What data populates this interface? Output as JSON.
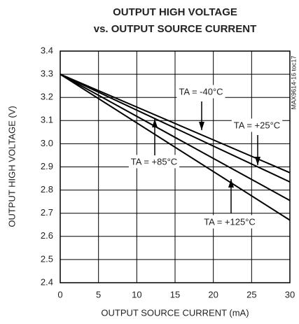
{
  "chart_data": {
    "type": "line",
    "title": [
      "OUTPUT HIGH VOLTAGE",
      "vs. OUTPUT SOURCE CURRENT"
    ],
    "x_label": "OUTPUT SOURCE CURRENT (mA)",
    "y_label": "OUTPUT HIGH VOLTAGE (V)",
    "annotation": "MAX9614-16 toc17",
    "x": [
      0,
      30
    ],
    "series": [
      {
        "name": "TA = -40°C",
        "color": "#000000",
        "values": [
          3.3,
          2.875
        ]
      },
      {
        "name": "TA = +25°C",
        "color": "#000000",
        "values": [
          3.3,
          2.835
        ]
      },
      {
        "name": "TA = +85°C",
        "color": "#000000",
        "values": [
          3.3,
          2.755
        ]
      },
      {
        "name": "TA = +125°C",
        "color": "#000000",
        "values": [
          3.3,
          2.67
        ]
      }
    ],
    "xlim": [
      0,
      30
    ],
    "xticks": [
      0,
      5,
      10,
      15,
      20,
      25,
      30
    ],
    "ylim": [
      2.4,
      3.4
    ],
    "yticks": [
      2.4,
      2.5,
      2.6,
      2.7,
      2.8,
      2.9,
      {
        "value": 3,
        "label": "3.0"
      },
      3.1,
      3.2,
      3.3,
      3.4
    ],
    "grid": true
  }
}
